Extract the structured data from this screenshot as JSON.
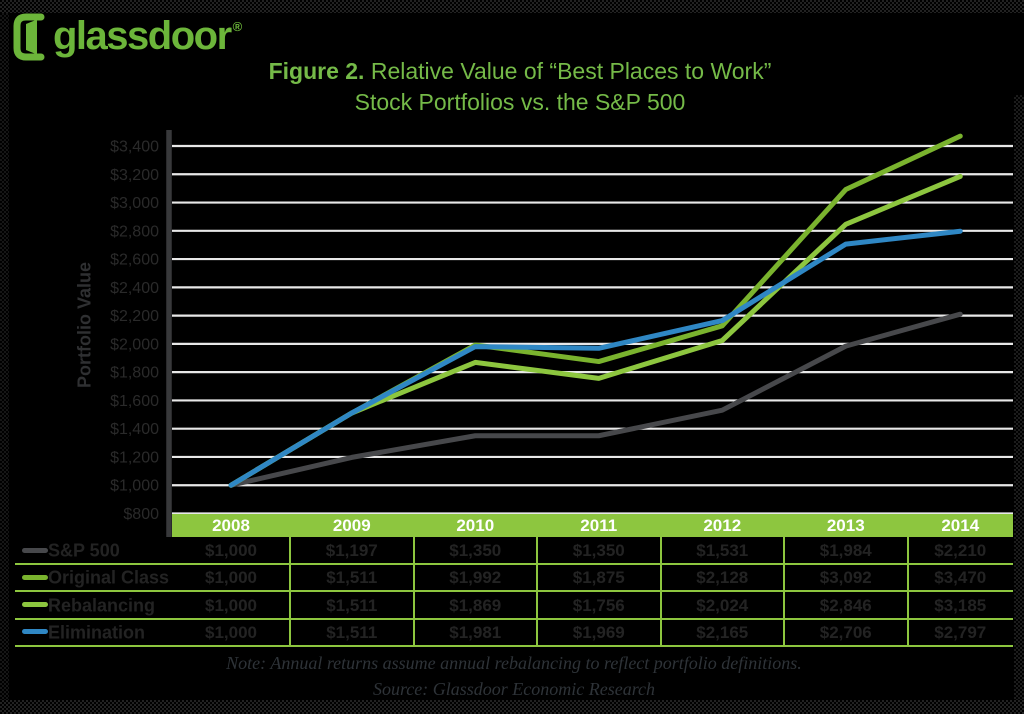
{
  "logo": {
    "brand": "glassdoor",
    "registered": "®"
  },
  "title": {
    "figure_label": "Figure 2.",
    "line1_rest": " Relative Value of “Best Places to Work”",
    "line2": "Stock Portfolios vs. the S&P 500"
  },
  "note": {
    "line1": "Note: Annual returns assume annual rebalancing to reflect portfolio definitions.",
    "line2": "Source: Glassdoor Economic Research"
  },
  "colors": {
    "background": "#000000",
    "logo_green": "#6cb53a",
    "title_green": "#75ba48",
    "bar_green": "#8dc63f",
    "grid_line": "#e8e8e8",
    "axis_line": "#38393b",
    "tick_text": "#2a2a2a",
    "table_text": "#232323",
    "year_text": "#ffffff",
    "note_text": "#2e3338"
  },
  "chart_data": {
    "type": "line",
    "title": "Figure 2. Relative Value of “Best Places to Work” Stock Portfolios vs. the S&P 500",
    "xlabel": "",
    "ylabel": "Portfolio Value",
    "categories": [
      "2008",
      "2009",
      "2010",
      "2011",
      "2012",
      "2013",
      "2014"
    ],
    "ylim": [
      800,
      3400
    ],
    "y_ticks": [
      800,
      1000,
      1200,
      1400,
      1600,
      1800,
      2000,
      2200,
      2400,
      2600,
      2800,
      3000,
      3200,
      3400
    ],
    "y_tick_prefix": "$",
    "grid": true,
    "legend_position": "table-left",
    "series": [
      {
        "name": "S&P 500",
        "color": "#47484b",
        "values": [
          1000,
          1197,
          1350,
          1350,
          1531,
          1984,
          2210
        ]
      },
      {
        "name": "Original Class",
        "color": "#7ab32e",
        "values": [
          1000,
          1511,
          1992,
          1875,
          2128,
          3092,
          3470
        ]
      },
      {
        "name": "Rebalancing",
        "color": "#8dc63f",
        "values": [
          1000,
          1511,
          1869,
          1756,
          2024,
          2846,
          3185
        ]
      },
      {
        "name": "Elimination",
        "color": "#2f87c4",
        "values": [
          1000,
          1511,
          1981,
          1969,
          2165,
          2706,
          2797
        ]
      }
    ]
  }
}
